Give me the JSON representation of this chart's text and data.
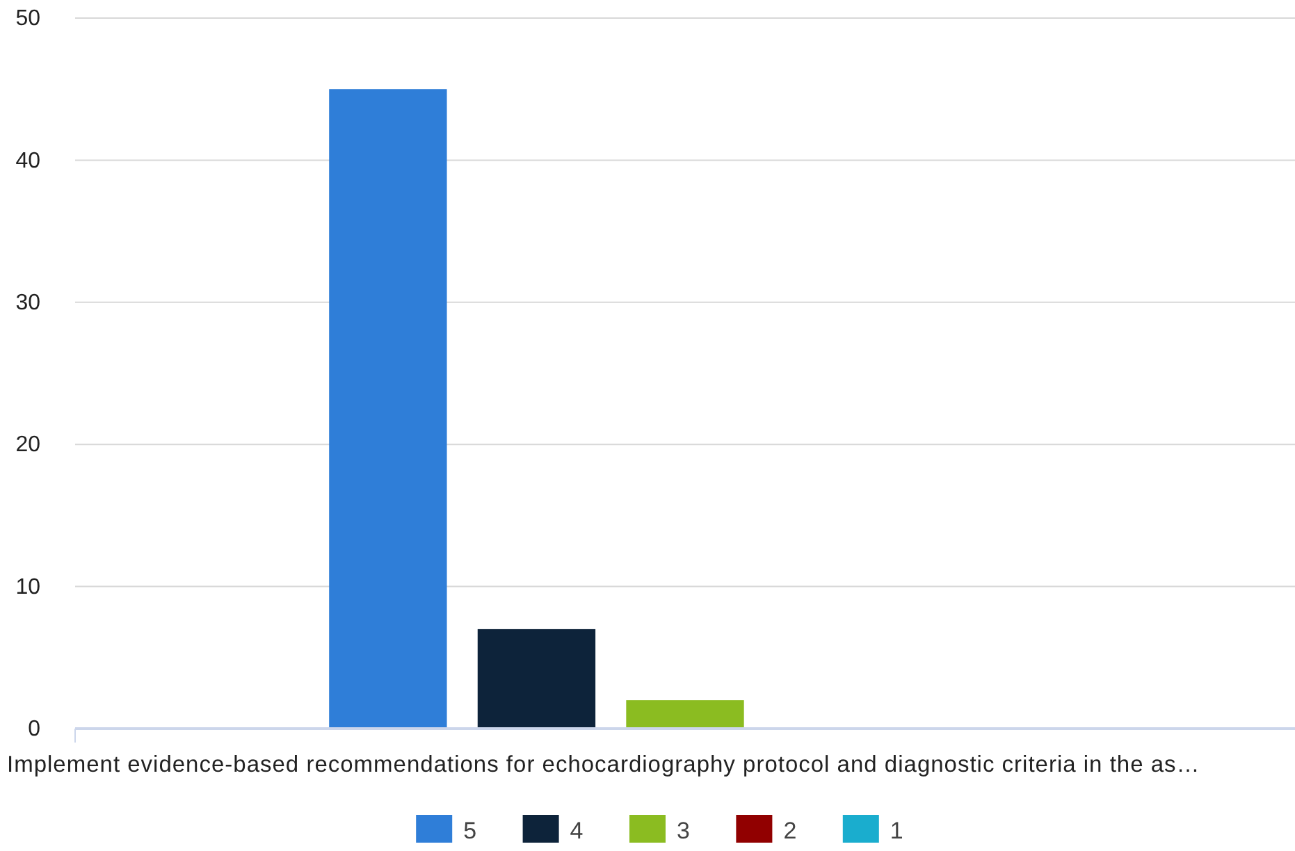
{
  "chart_data": {
    "type": "bar",
    "categories": [
      "Implement evidence-based recommendations for echocardiography protocol and diagnostic criteria in the as…"
    ],
    "series": [
      {
        "name": "5",
        "color": "#2f7ed8",
        "values": [
          45
        ]
      },
      {
        "name": "4",
        "color": "#0d233a",
        "values": [
          7
        ]
      },
      {
        "name": "3",
        "color": "#8bbc21",
        "values": [
          2
        ]
      },
      {
        "name": "2",
        "color": "#910000",
        "values": [
          0
        ]
      },
      {
        "name": "1",
        "color": "#1aadce",
        "values": [
          0
        ]
      }
    ],
    "ylim": [
      0,
      50
    ],
    "yticks": [
      0,
      10,
      20,
      30,
      40,
      50
    ],
    "grid": "y",
    "legend": "bottom"
  }
}
